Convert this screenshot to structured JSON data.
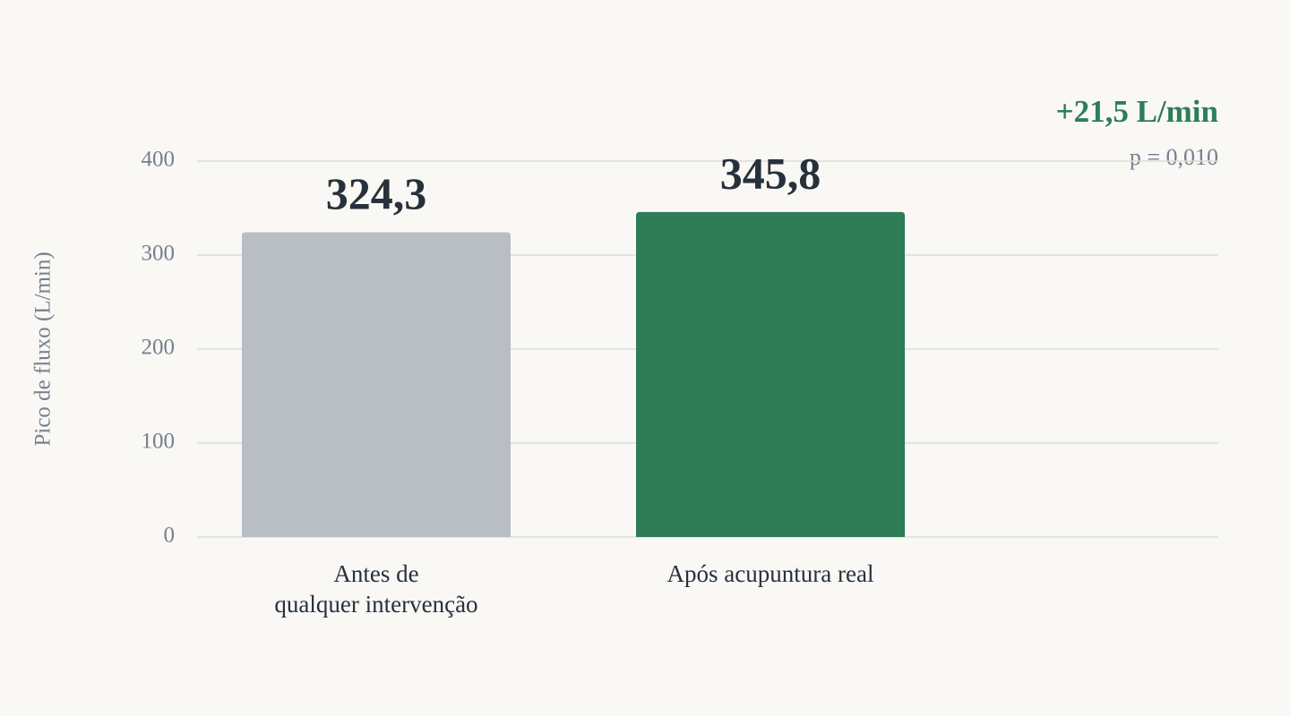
{
  "chart_data": {
    "type": "bar",
    "y_label": "Pico de fluxo (L/min)",
    "categories": [
      "Antes de\nqualquer intervenção",
      "Após acupuntura real"
    ],
    "values": [
      324.3,
      345.8
    ],
    "value_labels": [
      "324,3",
      "345,8"
    ],
    "colors": [
      "#b9bec5",
      "#2e7d57"
    ],
    "ylim": [
      0,
      400
    ],
    "yticks": [
      0,
      100,
      200,
      300,
      400
    ],
    "grid": true,
    "annotations": {
      "difference": "+21,5 L/min",
      "p_value": "p = 0,010"
    }
  }
}
